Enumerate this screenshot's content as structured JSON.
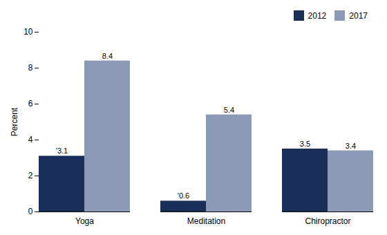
{
  "chart_data": {
    "type": "bar",
    "categories": [
      "Yoga",
      "Meditation",
      "Chiropractor"
    ],
    "series": [
      {
        "name": "2012",
        "color": "#1a2e5a",
        "values": [
          3.1,
          0.6,
          3.5
        ],
        "value_labels": [
          "'3.1",
          "'0.6",
          "3.5"
        ]
      },
      {
        "name": "2017",
        "color": "#8c9bb5",
        "values": [
          8.4,
          5.4,
          3.4
        ],
        "value_labels": [
          "8.4",
          "5.4",
          "3.4"
        ]
      }
    ],
    "ylabel": "Percent",
    "ylim": [
      0,
      10
    ],
    "yticks": [
      0,
      2,
      4,
      6,
      8,
      10
    ],
    "grid": false,
    "legend": "upper right",
    "data_labels": true
  }
}
